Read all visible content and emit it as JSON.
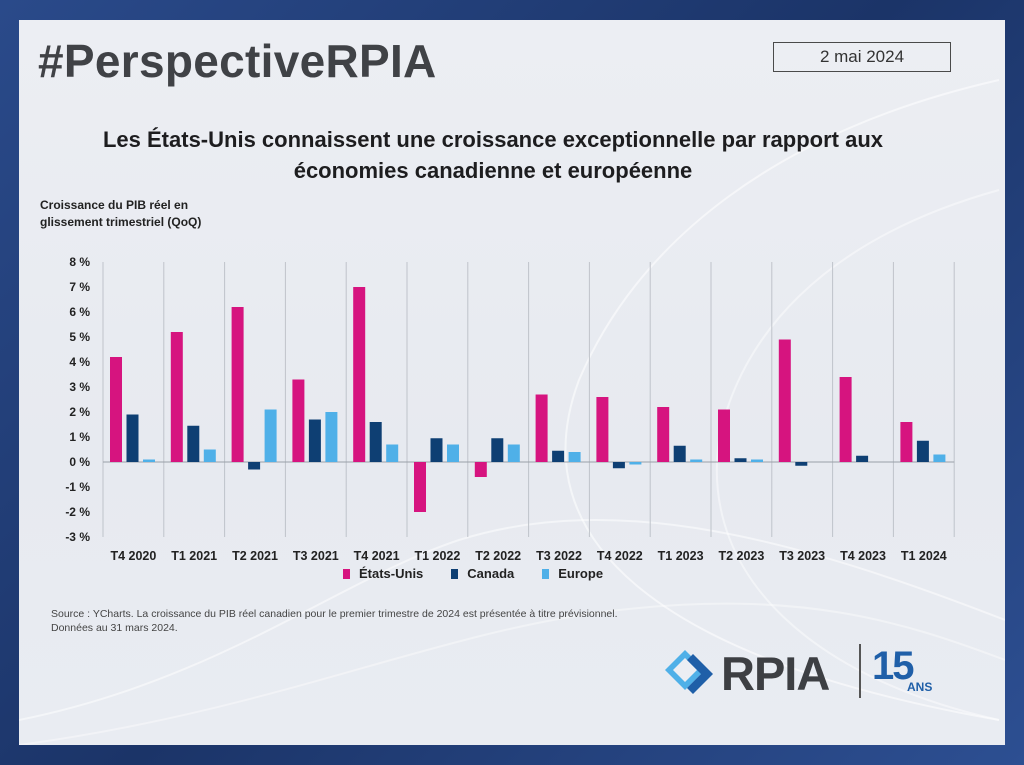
{
  "header": {
    "hashtag": "#PerspectiveRPIA",
    "date": "2 mai 2024"
  },
  "title_line1": "Les États-Unis connaissent une croissance exceptionnelle par rapport aux",
  "title_line2": "économies canadienne et européenne",
  "ylabel_line1": "Croissance du PIB réel en",
  "ylabel_line2": "glissement trimestriel (QoQ)",
  "source_line1": "Source : YCharts. La croissance du PIB réel canadien pour le premier trimestre de 2024 est présentée à titre prévisionnel.",
  "source_line2": "Données au 31 mars 2024.",
  "logo": {
    "text": "RPIA",
    "number": "15",
    "suffix": "ANS"
  },
  "colors": {
    "us": "#d6147f",
    "canada": "#0e3f73",
    "europe": "#4fb0e8",
    "accent": "#1f5fa8"
  },
  "chart_data": {
    "type": "bar",
    "categories": [
      "T4 2020",
      "T1 2021",
      "T2 2021",
      "T3 2021",
      "T4 2021",
      "T1 2022",
      "T2 2022",
      "T3 2022",
      "T4 2022",
      "T1 2023",
      "T2 2023",
      "T3 2023",
      "T4 2023",
      "T1 2024"
    ],
    "series": [
      {
        "name": "États-Unis",
        "values": [
          4.2,
          5.2,
          6.2,
          3.3,
          7.0,
          -2.0,
          -0.6,
          2.7,
          2.6,
          2.2,
          2.1,
          4.9,
          3.4,
          1.6
        ]
      },
      {
        "name": "Canada",
        "values": [
          1.9,
          1.45,
          -0.3,
          1.7,
          1.6,
          0.95,
          0.95,
          0.45,
          -0.25,
          0.65,
          0.15,
          -0.15,
          0.25,
          0.85
        ]
      },
      {
        "name": "Europe",
        "values": [
          0.1,
          0.5,
          2.1,
          2.0,
          0.7,
          0.7,
          0.7,
          0.4,
          -0.1,
          0.1,
          0.1,
          0.0,
          0.0,
          0.3
        ]
      }
    ],
    "ylim": [
      -3,
      8
    ],
    "yticks": [
      8,
      7,
      6,
      5,
      4,
      3,
      2,
      1,
      0,
      -1,
      -2,
      -3
    ],
    "ytick_labels": [
      "8 %",
      "7 %",
      "6 %",
      "5 %",
      "4 %",
      "3 %",
      "2 %",
      "1 %",
      "0 %",
      "-1 %",
      "-2 %",
      "-3 %"
    ],
    "grid": "vertical separators",
    "legend_position": "bottom-center"
  }
}
